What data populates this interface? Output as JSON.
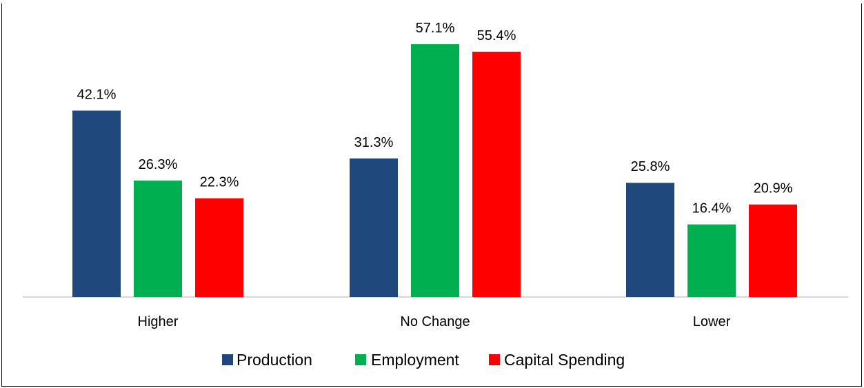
{
  "chart_data": {
    "type": "bar",
    "title": "",
    "xlabel": "",
    "ylabel": "",
    "categories": [
      "Higher",
      "No Change",
      "Lower"
    ],
    "series": [
      {
        "name": "Production",
        "color": "#1F497D",
        "values": [
          42.1,
          31.3,
          25.8
        ],
        "labels": [
          "42.1%",
          "31.3%",
          "25.8%"
        ]
      },
      {
        "name": "Employment",
        "color": "#00B050",
        "values": [
          26.3,
          57.1,
          16.4
        ],
        "labels": [
          "26.3%",
          "57.1%",
          "16.4%"
        ]
      },
      {
        "name": "Capital Spending",
        "color": "#FF0000",
        "values": [
          22.3,
          55.4,
          20.9
        ],
        "labels": [
          "22.3%",
          "55.4%",
          "20.9%"
        ]
      }
    ],
    "ylim": [
      0,
      60
    ],
    "grid": false,
    "legend_position": "bottom"
  }
}
